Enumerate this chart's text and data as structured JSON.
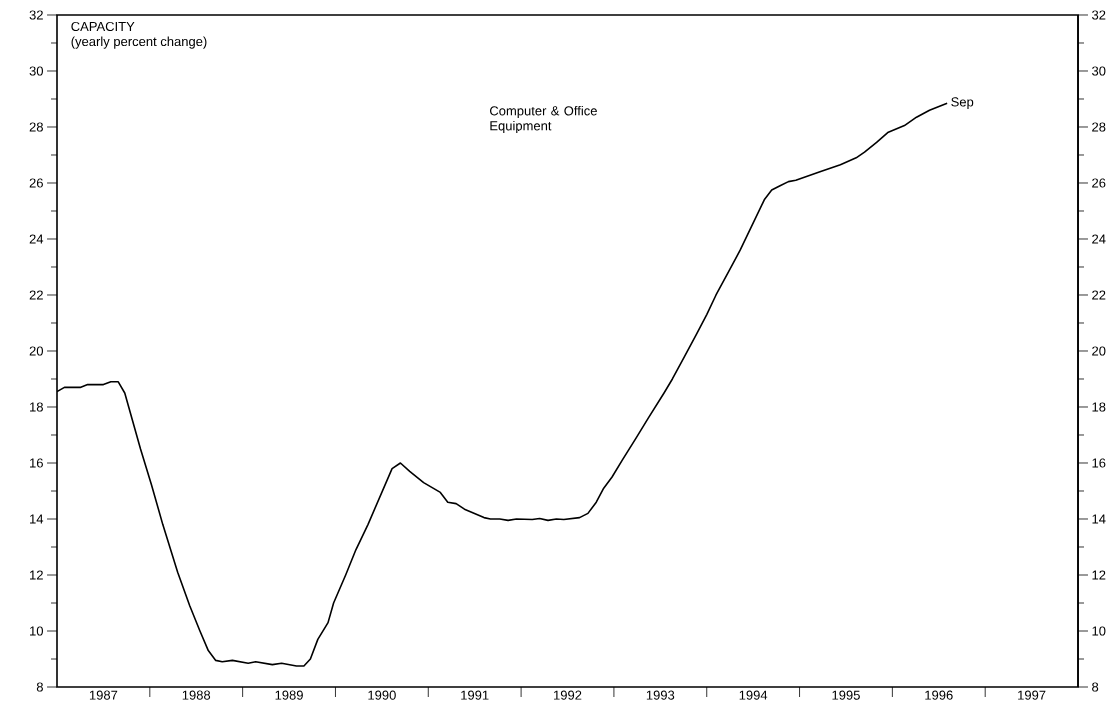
{
  "chart_data": {
    "type": "line",
    "title": "CAPACITY",
    "subtitle": "(yearly percent change)",
    "x": [
      1987.0,
      1987.08,
      1987.25,
      1987.33,
      1987.5,
      1987.58,
      1987.66,
      1987.73,
      1987.9,
      1988.02,
      1988.14,
      1988.3,
      1988.43,
      1988.54,
      1988.63,
      1988.71,
      1988.78,
      1988.89,
      1989.06,
      1989.14,
      1989.32,
      1989.42,
      1989.58,
      1989.66,
      1989.73,
      1989.81,
      1989.92,
      1989.98,
      1990.11,
      1990.22,
      1990.35,
      1990.48,
      1990.61,
      1990.7,
      1990.8,
      1990.95,
      1991.13,
      1991.21,
      1991.3,
      1991.39,
      1991.6,
      1991.67,
      1991.77,
      1991.86,
      1991.95,
      1992.12,
      1992.2,
      1992.29,
      1992.38,
      1992.46,
      1992.63,
      1992.72,
      1992.81,
      1992.89,
      1992.98,
      1993.09,
      1993.24,
      1993.37,
      1993.54,
      1993.63,
      1993.76,
      1993.89,
      1994.0,
      1994.1,
      1994.23,
      1994.36,
      1994.49,
      1994.62,
      1994.7,
      1994.79,
      1994.88,
      1994.96,
      1995.22,
      1995.44,
      1995.61,
      1995.7,
      1995.83,
      1995.95,
      1996.13,
      1996.26,
      1996.4,
      1996.59
    ],
    "series": [
      {
        "name": "Computer & Office Equipment",
        "color": "#000000",
        "values": [
          18.55,
          18.7,
          18.7,
          18.8,
          18.8,
          18.9,
          18.9,
          18.5,
          16.5,
          15.2,
          13.8,
          12.1,
          10.9,
          10.0,
          9.3,
          8.95,
          8.9,
          8.95,
          8.85,
          8.9,
          8.8,
          8.85,
          8.75,
          8.75,
          9.0,
          9.7,
          10.3,
          11.0,
          12.0,
          12.9,
          13.8,
          14.8,
          15.8,
          16.0,
          15.7,
          15.3,
          14.95,
          14.6,
          14.55,
          14.35,
          14.05,
          14.0,
          14.0,
          13.95,
          14.0,
          13.98,
          14.02,
          13.95,
          14.0,
          13.98,
          14.05,
          14.2,
          14.6,
          15.1,
          15.5,
          16.1,
          16.9,
          17.6,
          18.5,
          19.0,
          19.8,
          20.6,
          21.3,
          22.0,
          22.8,
          23.6,
          24.5,
          25.4,
          25.75,
          25.9,
          26.05,
          26.1,
          26.4,
          26.65,
          26.9,
          27.1,
          27.45,
          27.8,
          28.05,
          28.35,
          28.6,
          28.85
        ]
      }
    ],
    "annotations": [
      {
        "text": "Sep",
        "x": 1996.59,
        "y": 28.85
      }
    ],
    "xlim": [
      1987,
      1998
    ],
    "xticks": [
      {
        "value": 1988,
        "label": null
      },
      {
        "value": 1989,
        "label": null
      },
      {
        "value": 1990,
        "label": null
      },
      {
        "value": 1991,
        "label": null
      },
      {
        "value": 1992,
        "label": null
      },
      {
        "value": 1993,
        "label": null
      },
      {
        "value": 1994,
        "label": null
      },
      {
        "value": 1995,
        "label": null
      },
      {
        "value": 1996,
        "label": null
      },
      {
        "value": 1997,
        "label": null
      },
      {
        "value": 1987.5,
        "label": "1987"
      },
      {
        "value": 1988.5,
        "label": "1988"
      },
      {
        "value": 1989.5,
        "label": "1989"
      },
      {
        "value": 1990.5,
        "label": "1990"
      },
      {
        "value": 1991.5,
        "label": "1991"
      },
      {
        "value": 1992.5,
        "label": "1992"
      },
      {
        "value": 1993.5,
        "label": "1993"
      },
      {
        "value": 1994.5,
        "label": "1994"
      },
      {
        "value": 1995.5,
        "label": "1995"
      },
      {
        "value": 1996.5,
        "label": "1996"
      },
      {
        "value": 1997.5,
        "label": "1997"
      }
    ],
    "ylim": [
      8,
      32
    ],
    "yticks": [
      8,
      {
        "value": 9,
        "label": null
      },
      10,
      {
        "value": 11,
        "label": null
      },
      12,
      {
        "value": 13,
        "label": null
      },
      14,
      {
        "value": 15,
        "label": null
      },
      16,
      {
        "value": 17,
        "label": null
      },
      18,
      {
        "value": 19,
        "label": null
      },
      20,
      {
        "value": 21,
        "label": null
      },
      22,
      {
        "value": 23,
        "label": null
      },
      24,
      {
        "value": 25,
        "label": null
      },
      26,
      {
        "value": 27,
        "label": null
      },
      28,
      {
        "value": 29,
        "label": null
      },
      30,
      {
        "value": 31,
        "label": null
      },
      32
    ],
    "y2lim": [
      8,
      32
    ],
    "y2ticks": [
      8,
      {
        "value": 9,
        "label": null
      },
      10,
      {
        "value": 11,
        "label": null
      },
      12,
      {
        "value": 13,
        "label": null
      },
      14,
      {
        "value": 15,
        "label": null
      },
      16,
      {
        "value": 17,
        "label": null
      },
      18,
      {
        "value": 19,
        "label": null
      },
      20,
      {
        "value": 21,
        "label": null
      },
      22,
      {
        "value": 23,
        "label": null
      },
      24,
      {
        "value": 25,
        "label": null
      },
      26,
      {
        "value": 27,
        "label": null
      },
      28,
      {
        "value": 29,
        "label": null
      },
      30,
      {
        "value": 31,
        "label": null
      },
      32
    ],
    "grid": false
  }
}
